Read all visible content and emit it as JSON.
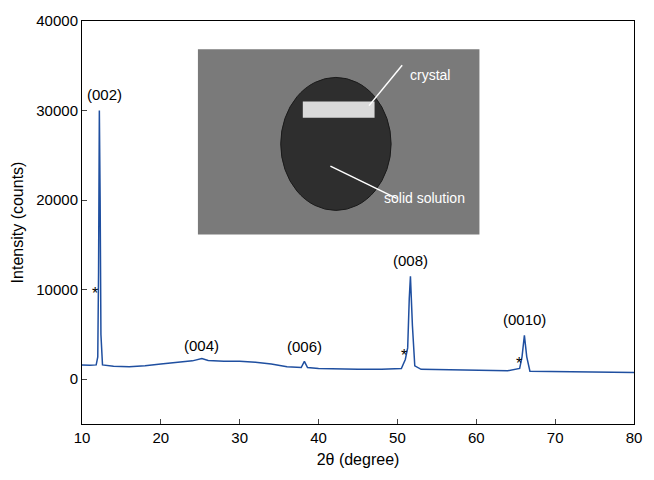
{
  "chart_data": {
    "type": "line",
    "xlabel": "2θ (degree)",
    "ylabel": "Intensity (counts)",
    "color": "#1f4fa0",
    "x": [
      10,
      11,
      11.8,
      12.0,
      12.1,
      12.2,
      12.3,
      12.4,
      12.6,
      14,
      16,
      18,
      20,
      22,
      24,
      25.2,
      26,
      28,
      30,
      32,
      34,
      36,
      37.8,
      38.2,
      38.6,
      40,
      42,
      45,
      48,
      50.5,
      51.0,
      51.3,
      51.5,
      51.65,
      51.9,
      52.2,
      53,
      56,
      60,
      64,
      65.5,
      65.8,
      66.1,
      66.4,
      66.8,
      70,
      75,
      80
    ],
    "values": [
      1600,
      1550,
      1600,
      2500,
      12000,
      30000,
      20000,
      5000,
      1600,
      1450,
      1400,
      1500,
      1700,
      1900,
      2050,
      2300,
      2100,
      2000,
      2000,
      1900,
      1700,
      1400,
      1300,
      2000,
      1300,
      1200,
      1150,
      1100,
      1100,
      1200,
      2200,
      3500,
      9000,
      11500,
      6000,
      1500,
      1100,
      1050,
      1000,
      950,
      1200,
      2500,
      4900,
      2500,
      900,
      850,
      800,
      750
    ],
    "xlim": [
      10,
      80
    ],
    "xticks": [
      10,
      20,
      30,
      40,
      50,
      60,
      70,
      80
    ],
    "ylim": [
      -5000,
      40000
    ],
    "yticks": [
      0,
      10000,
      20000,
      30000,
      40000
    ],
    "grid": false,
    "annotations": [
      {
        "text": "(002)",
        "x": 12.8,
        "y": 31800
      },
      {
        "text": "(004)",
        "x": 25.2,
        "y": 3800
      },
      {
        "text": "(006)",
        "x": 38.2,
        "y": 3600
      },
      {
        "text": "(008)",
        "x": 51.7,
        "y": 13300
      },
      {
        "text": "(0010)",
        "x": 66.1,
        "y": 6700
      },
      {
        "text": "*",
        "x": 11.6,
        "y": 9600
      },
      {
        "text": "*",
        "x": 50.8,
        "y": 2700
      },
      {
        "text": "*",
        "x": 65.4,
        "y": 1800
      }
    ],
    "inset": {
      "labels": [
        "crystal",
        "solid solution"
      ]
    }
  }
}
